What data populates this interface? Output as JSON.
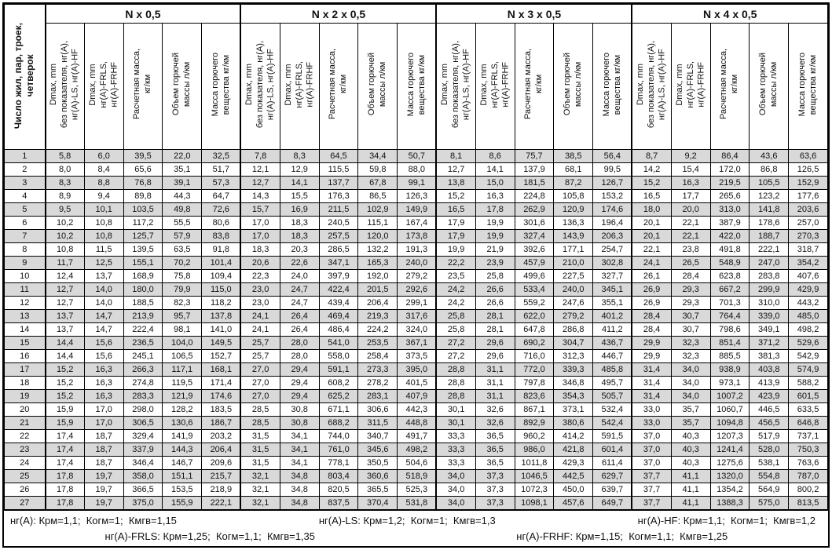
{
  "table": {
    "row_header": "Число жил, пар, троек,\nчетверок",
    "groups": [
      {
        "label": "N x 0,5"
      },
      {
        "label": "N x 2 x 0,5"
      },
      {
        "label": "N x 3 x 0,5"
      },
      {
        "label": "N x 4 x 0,5"
      }
    ],
    "col_headers": [
      "Dmax, mm\nбез показателя, нг(А),\nнг(А)-LS, нг(А)-HF",
      "Dmax, mm\nнг(А)-FRLS,\nнг(А)-FRHF",
      "Расчетная масса,\nкг/км",
      "Объем горючей\nмассы л/км",
      "Масса горючего\nвещества кг/км"
    ],
    "rows": [
      {
        "n": 1,
        "values": [
          "5,8",
          "6,0",
          "39,5",
          "22,0",
          "32,5",
          "7,8",
          "8,3",
          "64,5",
          "34,4",
          "50,7",
          "8,1",
          "8,6",
          "75,7",
          "38,5",
          "56,4",
          "8,7",
          "9,2",
          "86,4",
          "43,6",
          "63,6"
        ]
      },
      {
        "n": 2,
        "values": [
          "8,0",
          "8,4",
          "65,6",
          "35,1",
          "51,7",
          "12,1",
          "12,9",
          "115,5",
          "59,8",
          "88,0",
          "12,7",
          "14,1",
          "137,9",
          "68,1",
          "99,5",
          "14,2",
          "15,4",
          "172,0",
          "86,8",
          "126,5"
        ]
      },
      {
        "n": 3,
        "values": [
          "8,3",
          "8,8",
          "76,8",
          "39,1",
          "57,3",
          "12,7",
          "14,1",
          "137,7",
          "67,8",
          "99,1",
          "13,8",
          "15,0",
          "181,5",
          "87,2",
          "126,7",
          "15,2",
          "16,3",
          "219,5",
          "105,5",
          "152,9"
        ]
      },
      {
        "n": 4,
        "values": [
          "8,9",
          "9,4",
          "89,8",
          "44,3",
          "64,7",
          "14,3",
          "15,5",
          "176,3",
          "86,5",
          "126,3",
          "15,2",
          "16,3",
          "224,8",
          "105,8",
          "153,2",
          "16,5",
          "17,7",
          "265,6",
          "123,2",
          "177,6"
        ]
      },
      {
        "n": 5,
        "values": [
          "9,5",
          "10,1",
          "103,5",
          "49,8",
          "72,6",
          "15,7",
          "16,9",
          "211,5",
          "102,9",
          "149,9",
          "16,5",
          "17,8",
          "262,9",
          "120,9",
          "174,6",
          "18,0",
          "20,0",
          "313,0",
          "141,8",
          "203,6"
        ]
      },
      {
        "n": 6,
        "values": [
          "10,2",
          "10,8",
          "117,2",
          "55,5",
          "80,6",
          "17,0",
          "18,3",
          "240,5",
          "115,1",
          "167,4",
          "17,9",
          "19,9",
          "301,6",
          "136,3",
          "196,4",
          "20,1",
          "22,1",
          "387,9",
          "178,6",
          "257,0"
        ]
      },
      {
        "n": 7,
        "values": [
          "10,2",
          "10,8",
          "125,7",
          "57,9",
          "83,8",
          "17,0",
          "18,3",
          "257,5",
          "120,0",
          "173,8",
          "17,9",
          "19,9",
          "327,4",
          "143,9",
          "206,3",
          "20,1",
          "22,1",
          "422,0",
          "188,7",
          "270,3"
        ]
      },
      {
        "n": 8,
        "values": [
          "10,8",
          "11,5",
          "139,5",
          "63,5",
          "91,8",
          "18,3",
          "20,3",
          "286,5",
          "132,2",
          "191,3",
          "19,9",
          "21,9",
          "392,6",
          "177,1",
          "254,7",
          "22,1",
          "23,8",
          "491,8",
          "222,1",
          "318,7"
        ]
      },
      {
        "n": 9,
        "values": [
          "11,7",
          "12,5",
          "155,1",
          "70,2",
          "101,4",
          "20,6",
          "22,6",
          "347,1",
          "165,3",
          "240,0",
          "22,2",
          "23,9",
          "457,9",
          "210,0",
          "302,8",
          "24,1",
          "26,5",
          "548,9",
          "247,0",
          "354,2"
        ]
      },
      {
        "n": 10,
        "values": [
          "12,4",
          "13,7",
          "168,9",
          "75,8",
          "109,4",
          "22,3",
          "24,0",
          "397,9",
          "192,0",
          "279,2",
          "23,5",
          "25,8",
          "499,6",
          "227,5",
          "327,7",
          "26,1",
          "28,4",
          "623,8",
          "283,8",
          "407,6"
        ]
      },
      {
        "n": 11,
        "values": [
          "12,7",
          "14,0",
          "180,0",
          "79,9",
          "115,0",
          "23,0",
          "24,7",
          "422,4",
          "201,5",
          "292,6",
          "24,2",
          "26,6",
          "533,4",
          "240,0",
          "345,1",
          "26,9",
          "29,3",
          "667,2",
          "299,9",
          "429,9"
        ]
      },
      {
        "n": 12,
        "values": [
          "12,7",
          "14,0",
          "188,5",
          "82,3",
          "118,2",
          "23,0",
          "24,7",
          "439,4",
          "206,4",
          "299,1",
          "24,2",
          "26,6",
          "559,2",
          "247,6",
          "355,1",
          "26,9",
          "29,3",
          "701,3",
          "310,0",
          "443,2"
        ]
      },
      {
        "n": 13,
        "values": [
          "13,7",
          "14,7",
          "213,9",
          "95,7",
          "137,8",
          "24,1",
          "26,4",
          "469,4",
          "219,3",
          "317,6",
          "25,8",
          "28,1",
          "622,0",
          "279,2",
          "401,2",
          "28,4",
          "30,7",
          "764,4",
          "339,0",
          "485,0"
        ]
      },
      {
        "n": 14,
        "values": [
          "13,7",
          "14,7",
          "222,4",
          "98,1",
          "141,0",
          "24,1",
          "26,4",
          "486,4",
          "224,2",
          "324,0",
          "25,8",
          "28,1",
          "647,8",
          "286,8",
          "411,2",
          "28,4",
          "30,7",
          "798,6",
          "349,1",
          "498,2"
        ]
      },
      {
        "n": 15,
        "values": [
          "14,4",
          "15,6",
          "236,5",
          "104,0",
          "149,5",
          "25,7",
          "28,0",
          "541,0",
          "253,5",
          "367,1",
          "27,2",
          "29,6",
          "690,2",
          "304,7",
          "436,7",
          "29,9",
          "32,3",
          "851,4",
          "371,2",
          "529,6"
        ]
      },
      {
        "n": 16,
        "values": [
          "14,4",
          "15,6",
          "245,1",
          "106,5",
          "152,7",
          "25,7",
          "28,0",
          "558,0",
          "258,4",
          "373,5",
          "27,2",
          "29,6",
          "716,0",
          "312,3",
          "446,7",
          "29,9",
          "32,3",
          "885,5",
          "381,3",
          "542,9"
        ]
      },
      {
        "n": 17,
        "values": [
          "15,2",
          "16,3",
          "266,3",
          "117,1",
          "168,1",
          "27,0",
          "29,4",
          "591,1",
          "273,3",
          "395,0",
          "28,8",
          "31,1",
          "772,0",
          "339,3",
          "485,8",
          "31,4",
          "34,0",
          "938,9",
          "403,8",
          "574,9"
        ]
      },
      {
        "n": 18,
        "values": [
          "15,2",
          "16,3",
          "274,8",
          "119,5",
          "171,4",
          "27,0",
          "29,4",
          "608,2",
          "278,2",
          "401,5",
          "28,8",
          "31,1",
          "797,8",
          "346,8",
          "495,7",
          "31,4",
          "34,0",
          "973,1",
          "413,9",
          "588,2"
        ]
      },
      {
        "n": 19,
        "values": [
          "15,2",
          "16,3",
          "283,3",
          "121,9",
          "174,6",
          "27,0",
          "29,4",
          "625,2",
          "283,1",
          "407,9",
          "28,8",
          "31,1",
          "823,6",
          "354,3",
          "505,7",
          "31,4",
          "34,0",
          "1007,2",
          "423,9",
          "601,5"
        ]
      },
      {
        "n": 20,
        "values": [
          "15,9",
          "17,0",
          "298,0",
          "128,2",
          "183,5",
          "28,5",
          "30,8",
          "671,1",
          "306,6",
          "442,3",
          "30,1",
          "32,6",
          "867,1",
          "373,1",
          "532,4",
          "33,0",
          "35,7",
          "1060,7",
          "446,5",
          "633,5"
        ]
      },
      {
        "n": 21,
        "values": [
          "15,9",
          "17,0",
          "306,5",
          "130,6",
          "186,7",
          "28,5",
          "30,8",
          "688,2",
          "311,5",
          "448,8",
          "30,1",
          "32,6",
          "892,9",
          "380,6",
          "542,4",
          "33,0",
          "35,7",
          "1094,8",
          "456,5",
          "646,8"
        ]
      },
      {
        "n": 22,
        "values": [
          "17,4",
          "18,7",
          "329,4",
          "141,9",
          "203,2",
          "31,5",
          "34,1",
          "744,0",
          "340,7",
          "491,7",
          "33,3",
          "36,5",
          "960,2",
          "414,2",
          "591,5",
          "37,0",
          "40,3",
          "1207,3",
          "517,9",
          "737,1"
        ]
      },
      {
        "n": 23,
        "values": [
          "17,4",
          "18,7",
          "337,9",
          "144,3",
          "206,4",
          "31,5",
          "34,1",
          "761,0",
          "345,6",
          "498,2",
          "33,3",
          "36,5",
          "986,0",
          "421,8",
          "601,4",
          "37,0",
          "40,3",
          "1241,4",
          "528,0",
          "750,3"
        ]
      },
      {
        "n": 24,
        "values": [
          "17,4",
          "18,7",
          "346,4",
          "146,7",
          "209,6",
          "31,5",
          "34,1",
          "778,1",
          "350,5",
          "504,6",
          "33,3",
          "36,5",
          "1011,8",
          "429,3",
          "611,4",
          "37,0",
          "40,3",
          "1275,6",
          "538,1",
          "763,6"
        ]
      },
      {
        "n": 25,
        "values": [
          "17,8",
          "19,7",
          "358,0",
          "151,1",
          "215,7",
          "32,1",
          "34,8",
          "803,4",
          "360,6",
          "518,9",
          "34,0",
          "37,3",
          "1046,5",
          "442,5",
          "629,7",
          "37,7",
          "41,1",
          "1320,0",
          "554,8",
          "787,0"
        ]
      },
      {
        "n": 26,
        "values": [
          "17,8",
          "19,7",
          "366,5",
          "153,5",
          "218,9",
          "32,1",
          "34,8",
          "820,5",
          "365,5",
          "525,3",
          "34,0",
          "37,3",
          "1072,3",
          "450,0",
          "639,7",
          "37,7",
          "41,1",
          "1354,2",
          "564,9",
          "800,2"
        ]
      },
      {
        "n": 27,
        "values": [
          "17,8",
          "19,7",
          "375,0",
          "155,9",
          "222,1",
          "32,1",
          "34,8",
          "837,5",
          "370,4",
          "531,8",
          "34,0",
          "37,3",
          "1098,1",
          "457,6",
          "649,7",
          "37,7",
          "41,1",
          "1388,3",
          "575,0",
          "813,5"
        ]
      }
    ]
  },
  "footer": {
    "line1": [
      "нг(А): Крм=1,1;  Когм=1;  Кмгв=1,15",
      "нг(А)-LS: Крм=1,2;  Когм=1;  Кмгв=1,3",
      "нг(А)-HF: Крм=1,1;  Когм=1;  Кмгв=1,2"
    ],
    "line2": [
      "нг(А)-FRLS: Крм=1,25;  Когм=1,1;  Кмгв=1,35",
      "нг(А)-FRHF: Крм=1,15;  Когм=1,1;  Кмгв=1,25"
    ]
  },
  "colors": {
    "row_shade": "#d9d9d9",
    "border": "#000000",
    "text": "#111111"
  }
}
